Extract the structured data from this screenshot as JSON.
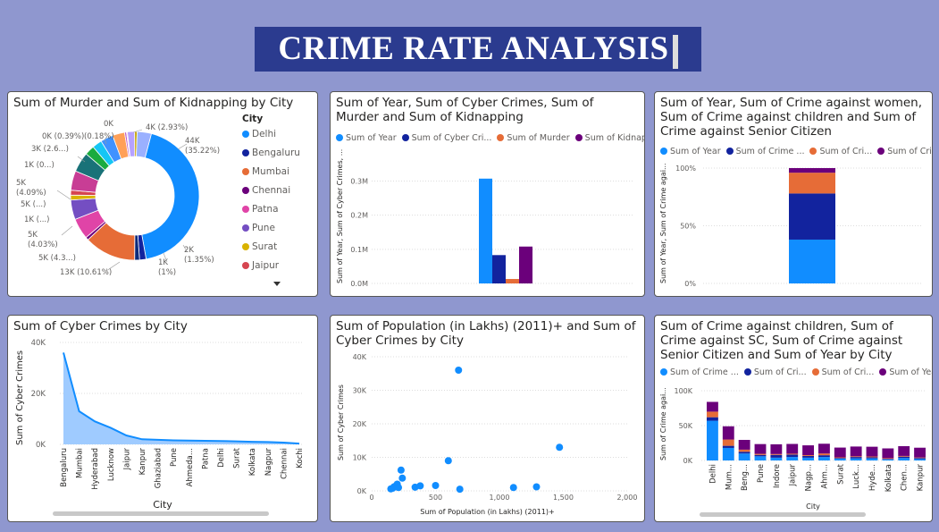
{
  "header": {
    "title": "CRIME RATE ANALYSIS"
  },
  "cities": [
    "Delhi",
    "Bengaluru",
    "Mumbai",
    "Chennai",
    "Patna",
    "Pune",
    "Surat",
    "Jaipur"
  ],
  "chart_data": [
    {
      "id": "donut",
      "type": "pie",
      "title": "Sum of Murder and Sum of Kidnapping by City",
      "legend_title": "City",
      "legend": [
        {
          "name": "Delhi",
          "color": "#118dff"
        },
        {
          "name": "Bengaluru",
          "color": "#12239e"
        },
        {
          "name": "Mumbai",
          "color": "#e66c37"
        },
        {
          "name": "Chennai",
          "color": "#6b007b"
        },
        {
          "name": "Patna",
          "color": "#e044a7"
        },
        {
          "name": "Pune",
          "color": "#744ec2"
        },
        {
          "name": "Surat",
          "color": "#d9b300"
        },
        {
          "name": "Jaipur",
          "color": "#d64550"
        }
      ],
      "slices": [
        {
          "value": 35.22,
          "color": "#118dff",
          "label": "44K\n(35.22%)"
        },
        {
          "value": 1.35,
          "color": "#12239e",
          "label": "2K\n(1.35%)"
        },
        {
          "value": 1.0,
          "color": "#0a2a7a",
          "label": "1K\n(1%)"
        },
        {
          "value": 10.61,
          "color": "#e66c37",
          "label": "13K (10.61%)"
        },
        {
          "value": 0.6,
          "color": "#6b007b",
          "label": ""
        },
        {
          "value": 4.3,
          "color": "#e044a7",
          "label": "5K (4.3...)"
        },
        {
          "value": 4.03,
          "color": "#744ec2",
          "label": "5K\n(4.03%)"
        },
        {
          "value": 1.0,
          "color": "#d9b300",
          "label": "1K (...)"
        },
        {
          "value": 1.0,
          "color": "#d64550",
          "label": ""
        },
        {
          "value": 4.0,
          "color": "#c83d95",
          "label": "5K (...)"
        },
        {
          "value": 4.09,
          "color": "#197278",
          "label": "5K\n(4.09%)"
        },
        {
          "value": 2.0,
          "color": "#1aab40",
          "label": "1K (0...)"
        },
        {
          "value": 2.0,
          "color": "#15c6f4",
          "label": ""
        },
        {
          "value": 2.6,
          "color": "#4092ff",
          "label": "3K (2.6...)"
        },
        {
          "value": 2.5,
          "color": "#ffa058",
          "label": ""
        },
        {
          "value": 0.39,
          "color": "#be5dc9",
          "label": "0K (0.39%)"
        },
        {
          "value": 0.18,
          "color": "#f472d0",
          "label": "(0.18%)"
        },
        {
          "value": 1.5,
          "color": "#b5a1ff",
          "label": "0K"
        },
        {
          "value": 0.5,
          "color": "#c4a200",
          "label": ""
        },
        {
          "value": 2.93,
          "color": "#9ab0ff",
          "label": "4K (2.93%)"
        }
      ]
    },
    {
      "id": "bar1",
      "type": "bar",
      "title": "Sum of Year, Sum of Cyber Crimes, Sum of Murder and Sum of Kidnapping",
      "ylabel": "Sum of Year, Sum of Cyber Crimes, ...",
      "yticks": [
        "0.0M",
        "0.1M",
        "0.2M",
        "0.3M"
      ],
      "ylim": [
        0,
        0.33
      ],
      "series": [
        {
          "name": "Sum of Year",
          "color": "#118dff",
          "value": 0.307
        },
        {
          "name": "Sum of Cyber Cri...",
          "color": "#12239e",
          "value": 0.083
        },
        {
          "name": "Sum of Murder",
          "color": "#e66c37",
          "value": 0.013
        },
        {
          "name": "Sum of Kidnap...",
          "color": "#6b007b",
          "value": 0.108
        }
      ]
    },
    {
      "id": "stack100",
      "type": "bar",
      "title": "Sum of Year, Sum of Crime against women, Sum of Crime against children and Sum of Crime against Senior Citizen",
      "ylabel": "Sum of Year, Sum of Crime agai...",
      "yticks": [
        "0%",
        "50%",
        "100%"
      ],
      "series": [
        {
          "name": "Sum of Year",
          "color": "#118dff",
          "value": 38
        },
        {
          "name": "Sum of Crime ...",
          "color": "#12239e",
          "value": 40
        },
        {
          "name": "Sum of Cri...",
          "color": "#e66c37",
          "value": 18
        },
        {
          "name": "Sum of Cri...",
          "color": "#6b007b",
          "value": 4
        }
      ]
    },
    {
      "id": "area",
      "type": "area",
      "title": "Sum of Cyber Crimes by City",
      "xlabel": "City",
      "ylabel": "Sum of Cyber Crimes",
      "yticks": [
        "0K",
        "20K",
        "40K"
      ],
      "ylim": [
        0,
        40000
      ],
      "categories": [
        "Bengaluru",
        "Mumbai",
        "Hyderabad",
        "Lucknow",
        "Jaipur",
        "Kanpur",
        "Ghaziabad",
        "Pune",
        "Ahmeda...",
        "Patna",
        "Delhi",
        "Surat",
        "Kolkata",
        "Nagpur",
        "Chennai",
        "Kochi"
      ],
      "values": [
        36000,
        13000,
        9000,
        6500,
        3500,
        2000,
        1800,
        1600,
        1500,
        1400,
        1300,
        1200,
        1000,
        900,
        700,
        300
      ]
    },
    {
      "id": "scatter",
      "type": "scatter",
      "title": "Sum of Population (in Lakhs) (2011)+ and Sum of Cyber Crimes by City",
      "xlabel": "Sum of Population (in Lakhs) (2011)+",
      "ylabel": "Sum of Cyber Crimes",
      "xticks": [
        "0",
        "500",
        "1,000",
        "1,500",
        "2,000"
      ],
      "yticks": [
        "0K",
        "10K",
        "20K",
        "30K",
        "40K"
      ],
      "xlim": [
        0,
        2000
      ],
      "ylim": [
        0,
        40000
      ],
      "points": [
        [
          680,
          36000
        ],
        [
          1470,
          13000
        ],
        [
          600,
          9000
        ],
        [
          230,
          6200
        ],
        [
          240,
          3800
        ],
        [
          190,
          1500
        ],
        [
          175,
          1200
        ],
        [
          165,
          800
        ],
        [
          150,
          600
        ],
        [
          200,
          2000
        ],
        [
          210,
          1000
        ],
        [
          340,
          1100
        ],
        [
          380,
          1500
        ],
        [
          500,
          1600
        ],
        [
          690,
          500
        ],
        [
          1110,
          1000
        ],
        [
          1290,
          1200
        ]
      ]
    },
    {
      "id": "stacked",
      "type": "bar",
      "title": "Sum of Crime against children, Sum of Crime against SC, Sum of Crime against Senior Citizen and Sum of Year by City",
      "xlabel": "City",
      "ylabel": "Sum of Crime agai...",
      "yticks": [
        "0K",
        "50K",
        "100K"
      ],
      "ylim": [
        0,
        100000
      ],
      "legend": [
        {
          "name": "Sum of Crime ...",
          "color": "#118dff"
        },
        {
          "name": "Sum of Cri...",
          "color": "#12239e"
        },
        {
          "name": "Sum of Cri...",
          "color": "#e66c37"
        },
        {
          "name": "Sum of Year",
          "color": "#6b007b"
        }
      ],
      "categories": [
        "Delhi",
        "Mum...",
        "Beng...",
        "Pune",
        "Indore",
        "Jaipur",
        "Nagp...",
        "Ahm...",
        "Surat",
        "Luck...",
        "Hyde...",
        "Kolkata",
        "Chen...",
        "Kanpur"
      ],
      "stacks": [
        [
          57000,
          5000,
          8000,
          14000
        ],
        [
          18000,
          3000,
          9000,
          19000
        ],
        [
          10000,
          2500,
          3000,
          14000
        ],
        [
          6000,
          2000,
          1500,
          14000
        ],
        [
          4000,
          4000,
          1200,
          14000
        ],
        [
          5000,
          3500,
          1200,
          14000
        ],
        [
          4000,
          2500,
          1200,
          14000
        ],
        [
          5000,
          2500,
          2500,
          14000
        ],
        [
          2500,
          1000,
          1000,
          14000
        ],
        [
          3000,
          2000,
          1000,
          14000
        ],
        [
          3000,
          1500,
          1200,
          14000
        ],
        [
          1500,
          800,
          1000,
          14000
        ],
        [
          3500,
          2000,
          1000,
          14000
        ],
        [
          2000,
          1500,
          800,
          14000
        ]
      ]
    }
  ]
}
